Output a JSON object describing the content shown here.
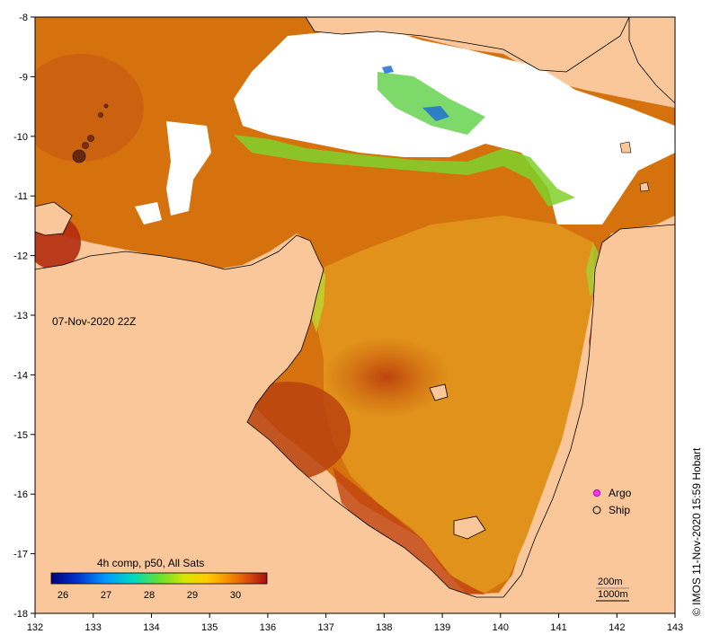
{
  "map": {
    "timestamp_label": "07-Nov-2020 22Z",
    "credit": "© IMOS 11-Nov-2020 15:59 Hobart",
    "x_ticks": [
      "132",
      "133",
      "134",
      "135",
      "136",
      "137",
      "138",
      "139",
      "140",
      "141",
      "142",
      "143"
    ],
    "y_ticks": [
      "-8",
      "-9",
      "-10",
      "-11",
      "-12",
      "-13",
      "-14",
      "-15",
      "-16",
      "-17",
      "-18"
    ],
    "colors": {
      "land": "#f9c79a",
      "cloud": "#ffffff",
      "sst_warm": "#d7680a",
      "sst_hot": "#b5320d",
      "sst_mid": "#e6a01a",
      "sst_cool": "#8ed82a",
      "sst_cold": "#1a4fd0"
    }
  },
  "legend": {
    "title": "4h comp, p50, All Sats",
    "ticks": [
      "26",
      "27",
      "28",
      "29",
      "30"
    ],
    "argo_label": "Argo",
    "ship_label": "Ship",
    "depth_200": "200m",
    "depth_1000": "1000m"
  }
}
